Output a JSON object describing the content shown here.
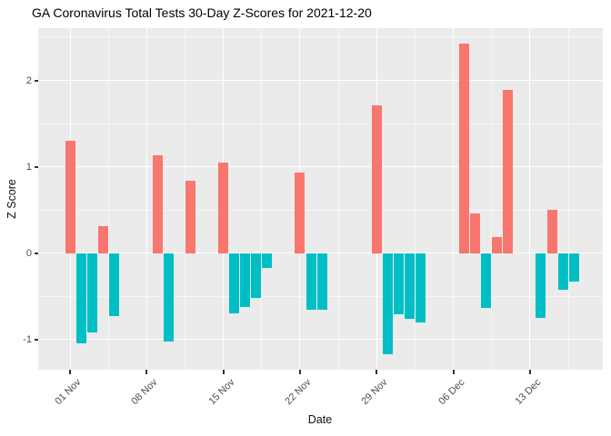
{
  "title": "GA Coronavirus Total Tests 30-Day Z-Scores for 2021-12-20",
  "chart_data": {
    "type": "bar",
    "title": "GA Coronavirus Total Tests 30-Day Z-Scores for 2021-12-20",
    "xlabel": "Date",
    "ylabel": "Z Score",
    "ylim": [
      -1.35,
      2.61
    ],
    "grid": "on",
    "legend": "none",
    "panel_bg": "#EBEBEB",
    "grid_color": "#FFFFFF",
    "positive_color": "#F8766D",
    "negative_color": "#00BFC4",
    "tick_color": "#333333",
    "tick_text_color": "#4D4D4D",
    "x_axis": {
      "ticks": [
        {
          "label": "01 Nov",
          "day": 0
        },
        {
          "label": "08 Nov",
          "day": 7
        },
        {
          "label": "15 Nov",
          "day": 14
        },
        {
          "label": "22 Nov",
          "day": 21
        },
        {
          "label": "29 Nov",
          "day": 28
        },
        {
          "label": "06 Dec",
          "day": 35
        },
        {
          "label": "13 Dec",
          "day": 42
        }
      ],
      "minor_days": [
        3.5,
        10.5,
        17.5,
        24.5,
        31.5,
        38.5,
        45.5
      ]
    },
    "y_axis": {
      "ticks": [
        {
          "label": "2",
          "value": 2
        },
        {
          "label": "1",
          "value": 1
        },
        {
          "label": "0",
          "value": 0
        },
        {
          "label": "-1",
          "value": -1
        }
      ],
      "minor_values": [
        2.5,
        1.5,
        0.5,
        -0.5
      ]
    },
    "bars": [
      {
        "date": "2021-11-01",
        "day": 0,
        "value": 1.3
      },
      {
        "date": "2021-11-02",
        "day": 1,
        "value": -1.05
      },
      {
        "date": "2021-11-03",
        "day": 2,
        "value": -0.92
      },
      {
        "date": "2021-11-04",
        "day": 3,
        "value": 0.31
      },
      {
        "date": "2021-11-05",
        "day": 4,
        "value": -0.73
      },
      {
        "date": "2021-11-09",
        "day": 8,
        "value": 1.13
      },
      {
        "date": "2021-11-10",
        "day": 9,
        "value": -1.03
      },
      {
        "date": "2021-11-12",
        "day": 11,
        "value": 0.84
      },
      {
        "date": "2021-11-15",
        "day": 14,
        "value": 1.05
      },
      {
        "date": "2021-11-16",
        "day": 15,
        "value": -0.7
      },
      {
        "date": "2021-11-17",
        "day": 16,
        "value": -0.62
      },
      {
        "date": "2021-11-18",
        "day": 17,
        "value": -0.52
      },
      {
        "date": "2021-11-19",
        "day": 18,
        "value": -0.17
      },
      {
        "date": "2021-11-22",
        "day": 21,
        "value": 0.93
      },
      {
        "date": "2021-11-23",
        "day": 22,
        "value": -0.66
      },
      {
        "date": "2021-11-24",
        "day": 23,
        "value": -0.66
      },
      {
        "date": "2021-11-29",
        "day": 28,
        "value": 1.71
      },
      {
        "date": "2021-11-30",
        "day": 29,
        "value": -1.17
      },
      {
        "date": "2021-12-01",
        "day": 30,
        "value": -0.71
      },
      {
        "date": "2021-12-02",
        "day": 31,
        "value": -0.76
      },
      {
        "date": "2021-12-03",
        "day": 32,
        "value": -0.8
      },
      {
        "date": "2021-12-07",
        "day": 36,
        "value": 2.43
      },
      {
        "date": "2021-12-08",
        "day": 37,
        "value": 0.46
      },
      {
        "date": "2021-12-09",
        "day": 38,
        "value": -0.64
      },
      {
        "date": "2021-12-10",
        "day": 39,
        "value": 0.18
      },
      {
        "date": "2021-12-11",
        "day": 40,
        "value": 1.89
      },
      {
        "date": "2021-12-14",
        "day": 43,
        "value": -0.75
      },
      {
        "date": "2021-12-15",
        "day": 44,
        "value": 0.5
      },
      {
        "date": "2021-12-16",
        "day": 45,
        "value": -0.42
      },
      {
        "date": "2021-12-17",
        "day": 46,
        "value": -0.33
      }
    ]
  }
}
